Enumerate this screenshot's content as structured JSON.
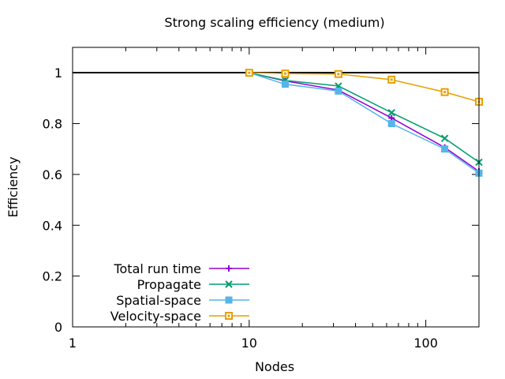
{
  "chart_data": {
    "type": "line",
    "title": "Strong scaling efficiency (medium)",
    "xlabel": "Nodes",
    "ylabel": "Efficiency",
    "xscale": "log",
    "xlim": [
      1,
      200
    ],
    "ylim": [
      0,
      1.1
    ],
    "xticks": [
      1,
      10,
      100
    ],
    "xtick_labels": [
      "1",
      "10",
      "100"
    ],
    "yticks": [
      0,
      0.2,
      0.4,
      0.6,
      0.8,
      1
    ],
    "ytick_labels": [
      "0",
      "0.2",
      "0.4",
      "0.6",
      "0.8",
      "1"
    ],
    "reference_line": 1,
    "grid": false,
    "legend_position": "bottom-left",
    "x": [
      10,
      16,
      32,
      64,
      128,
      200
    ],
    "series": [
      {
        "name": "Total run time",
        "color": "#9400d3",
        "marker": "plus",
        "values": [
          1.0,
          0.968,
          0.932,
          0.822,
          0.706,
          0.612
        ]
      },
      {
        "name": "Propagate",
        "color": "#009e73",
        "marker": "cross",
        "values": [
          1.0,
          0.97,
          0.948,
          0.843,
          0.742,
          0.648
        ]
      },
      {
        "name": "Spatial-space",
        "color": "#56b4e9",
        "marker": "filled-square",
        "values": [
          1.0,
          0.955,
          0.928,
          0.8,
          0.7,
          0.605
        ]
      },
      {
        "name": "Velocity-space",
        "color": "#e69f00",
        "marker": "open-square",
        "values": [
          1.0,
          0.997,
          0.995,
          0.973,
          0.924,
          0.886
        ]
      }
    ]
  }
}
